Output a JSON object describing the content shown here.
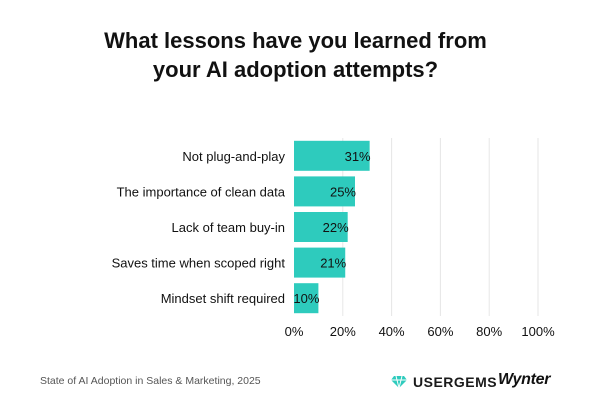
{
  "chart_data": {
    "type": "bar",
    "orientation": "horizontal",
    "title": [
      "What lessons have you learned from",
      "your AI adoption attempts?"
    ],
    "categories": [
      "Not plug-and-play",
      "The importance of clean data",
      "Lack of team buy-in",
      "Saves time when scoped right",
      "Mindset shift required"
    ],
    "values": [
      31,
      25,
      22,
      21,
      10
    ],
    "value_labels": [
      "31%",
      "25%",
      "22%",
      "21%",
      "10%"
    ],
    "xlim": [
      0,
      100
    ],
    "x_ticks": [
      "0%",
      "20%",
      "40%",
      "60%",
      "80%",
      "100%"
    ],
    "grid": "vertical",
    "bar_color": "#2ecbbd"
  },
  "footer": {
    "source": "State of AI Adoption in Sales & Marketing, 2025",
    "logo_usergems": "USERGEMS",
    "logo_wynter": "Wynter"
  },
  "colors": {
    "title": "#111111",
    "grid": "#e6e6e6",
    "gem": "#2ecbbd"
  }
}
